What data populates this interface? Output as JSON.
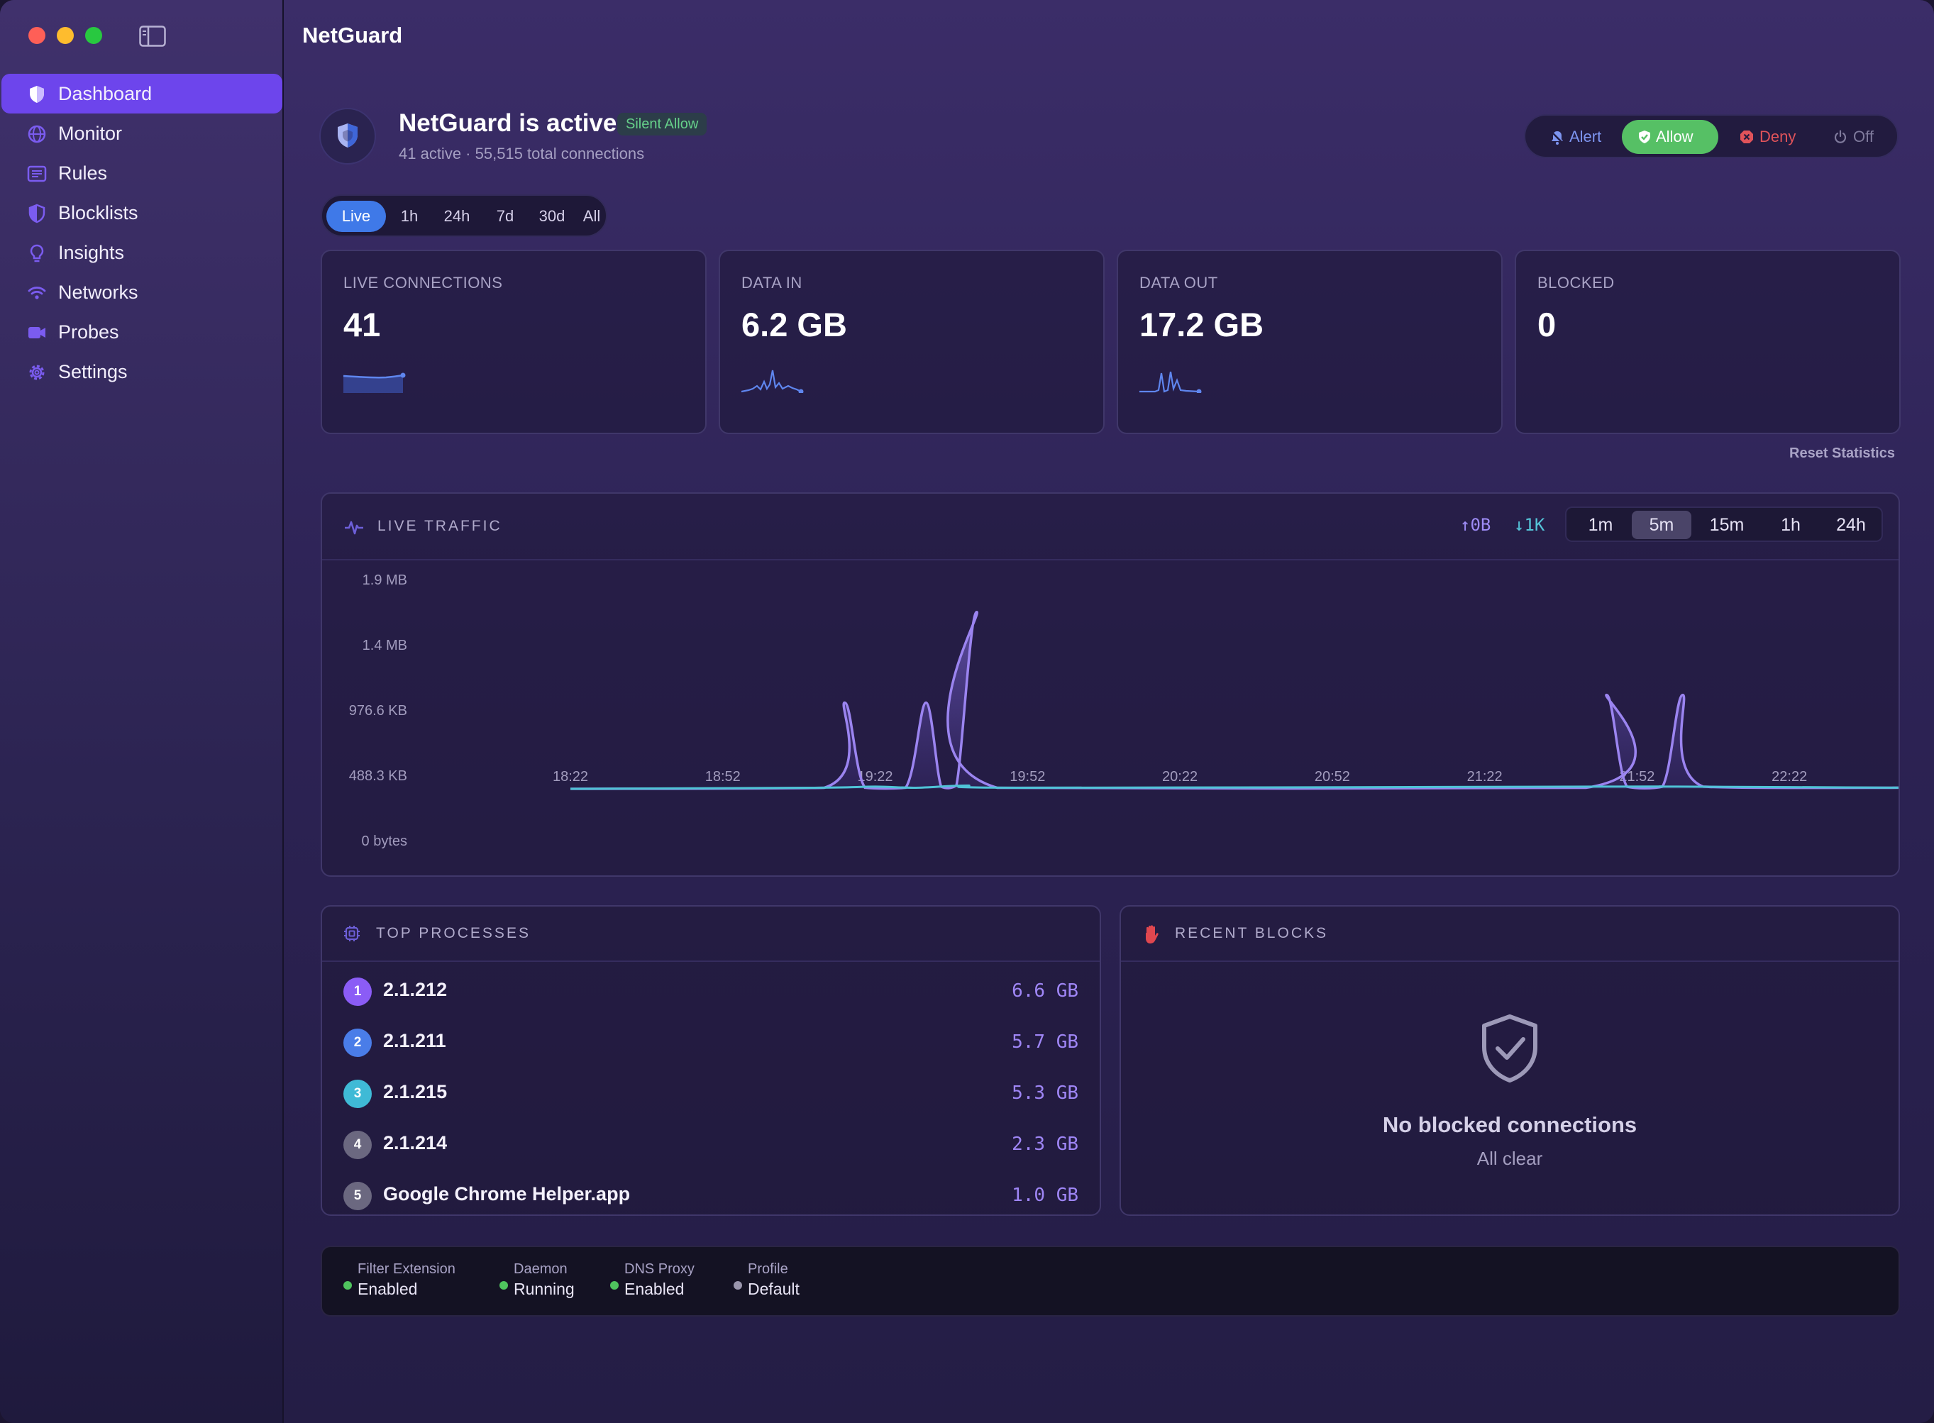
{
  "app_title": "NetGuard",
  "sidebar": {
    "items": [
      {
        "label": "Dashboard",
        "icon": "shield-icon",
        "active": true
      },
      {
        "label": "Monitor",
        "icon": "globe-icon"
      },
      {
        "label": "Rules",
        "icon": "list-icon"
      },
      {
        "label": "Blocklists",
        "icon": "half-shield-icon"
      },
      {
        "label": "Insights",
        "icon": "lightbulb-icon"
      },
      {
        "label": "Networks",
        "icon": "wifi-icon"
      },
      {
        "label": "Probes",
        "icon": "probe-icon"
      },
      {
        "label": "Settings",
        "icon": "gear-icon"
      }
    ]
  },
  "status": {
    "title": "NetGuard is active",
    "badge": "Silent Allow",
    "subtitle": "41 active · 55,515 total connections"
  },
  "mode_switch": {
    "alert": "Alert",
    "allow": "Allow",
    "deny": "Deny",
    "off": "Off",
    "selected": "Allow"
  },
  "range_tabs": [
    "Live",
    "1h",
    "24h",
    "7d",
    "30d",
    "All"
  ],
  "range_selected": "Live",
  "stats": [
    {
      "label": "LIVE CONNECTIONS",
      "value": "41"
    },
    {
      "label": "DATA IN",
      "value": "6.2 GB"
    },
    {
      "label": "DATA OUT",
      "value": "17.2 GB"
    },
    {
      "label": "BLOCKED",
      "value": "0"
    }
  ],
  "reset_label": "Reset Statistics",
  "live_traffic": {
    "title": "LIVE TRAFFIC",
    "rate_up": "↑0B",
    "rate_down": "↓1K",
    "windows": [
      "1m",
      "5m",
      "15m",
      "1h",
      "24h"
    ],
    "window_selected": "5m",
    "y_ticks": [
      "1.9 MB",
      "1.4 MB",
      "976.6 KB",
      "488.3 KB",
      "0 bytes"
    ],
    "x_ticks": [
      "18:22",
      "18:52",
      "19:22",
      "19:52",
      "20:22",
      "20:52",
      "21:22",
      "21:52",
      "22:22"
    ]
  },
  "chart_data": {
    "type": "area",
    "ylim": [
      0,
      1.9
    ],
    "y_unit": "MB",
    "series": [
      {
        "color": "#9b84f0",
        "points": [
          {
            "x": "18:22",
            "y": 0
          },
          {
            "x": "19:12",
            "y": 0.01
          },
          {
            "x": "19:16",
            "y": 0.78
          },
          {
            "x": "19:20",
            "y": 0.01
          },
          {
            "x": "19:28",
            "y": 0.01
          },
          {
            "x": "19:32",
            "y": 0.78
          },
          {
            "x": "19:35",
            "y": 0.02
          },
          {
            "x": "19:38",
            "y": 0.03
          },
          {
            "x": "19:42",
            "y": 1.6
          },
          {
            "x": "19:46",
            "y": 0.01
          },
          {
            "x": "21:42",
            "y": 0.01
          },
          {
            "x": "21:46",
            "y": 0.85
          },
          {
            "x": "21:50",
            "y": 0.02
          },
          {
            "x": "21:57",
            "y": 0.02
          },
          {
            "x": "22:01",
            "y": 0.85
          },
          {
            "x": "22:05",
            "y": 0.02
          },
          {
            "x": "22:46",
            "y": 0.01
          }
        ]
      },
      {
        "color": "#4fc3d6",
        "points": [
          {
            "x": "18:22",
            "y": 0
          },
          {
            "x": "19:10",
            "y": 0.01
          },
          {
            "x": "19:22",
            "y": 0.02
          },
          {
            "x": "19:30",
            "y": 0.01
          },
          {
            "x": "19:40",
            "y": 0.03
          },
          {
            "x": "19:50",
            "y": 0.01
          },
          {
            "x": "21:45",
            "y": 0.02
          },
          {
            "x": "22:00",
            "y": 0.02
          },
          {
            "x": "22:46",
            "y": 0.01
          }
        ]
      }
    ]
  },
  "processes": {
    "title": "TOP PROCESSES",
    "items": [
      {
        "rank": "1",
        "name": "2.1.212",
        "size": "6.6 GB",
        "color": "#8b5cf6"
      },
      {
        "rank": "2",
        "name": "2.1.211",
        "size": "5.7 GB",
        "color": "#4a7de8"
      },
      {
        "rank": "3",
        "name": "2.1.215",
        "size": "5.3 GB",
        "color": "#3fbad6"
      },
      {
        "rank": "4",
        "name": "2.1.214",
        "size": "2.3 GB",
        "color": "#6b6880"
      },
      {
        "rank": "5",
        "name": "Google Chrome Helper.app",
        "size": "1.0 GB",
        "color": "#6b6880"
      }
    ]
  },
  "recent_blocks": {
    "title": "RECENT BLOCKS",
    "empty_title": "No blocked connections",
    "empty_subtitle": "All clear"
  },
  "statusbar": [
    {
      "label": "Filter Extension",
      "value": "Enabled",
      "color": "#4fc45e"
    },
    {
      "label": "Daemon",
      "value": "Running",
      "color": "#4fc45e"
    },
    {
      "label": "DNS Proxy",
      "value": "Enabled",
      "color": "#4fc45e"
    },
    {
      "label": "Profile",
      "value": "Default",
      "color": "#9a96ad"
    }
  ]
}
